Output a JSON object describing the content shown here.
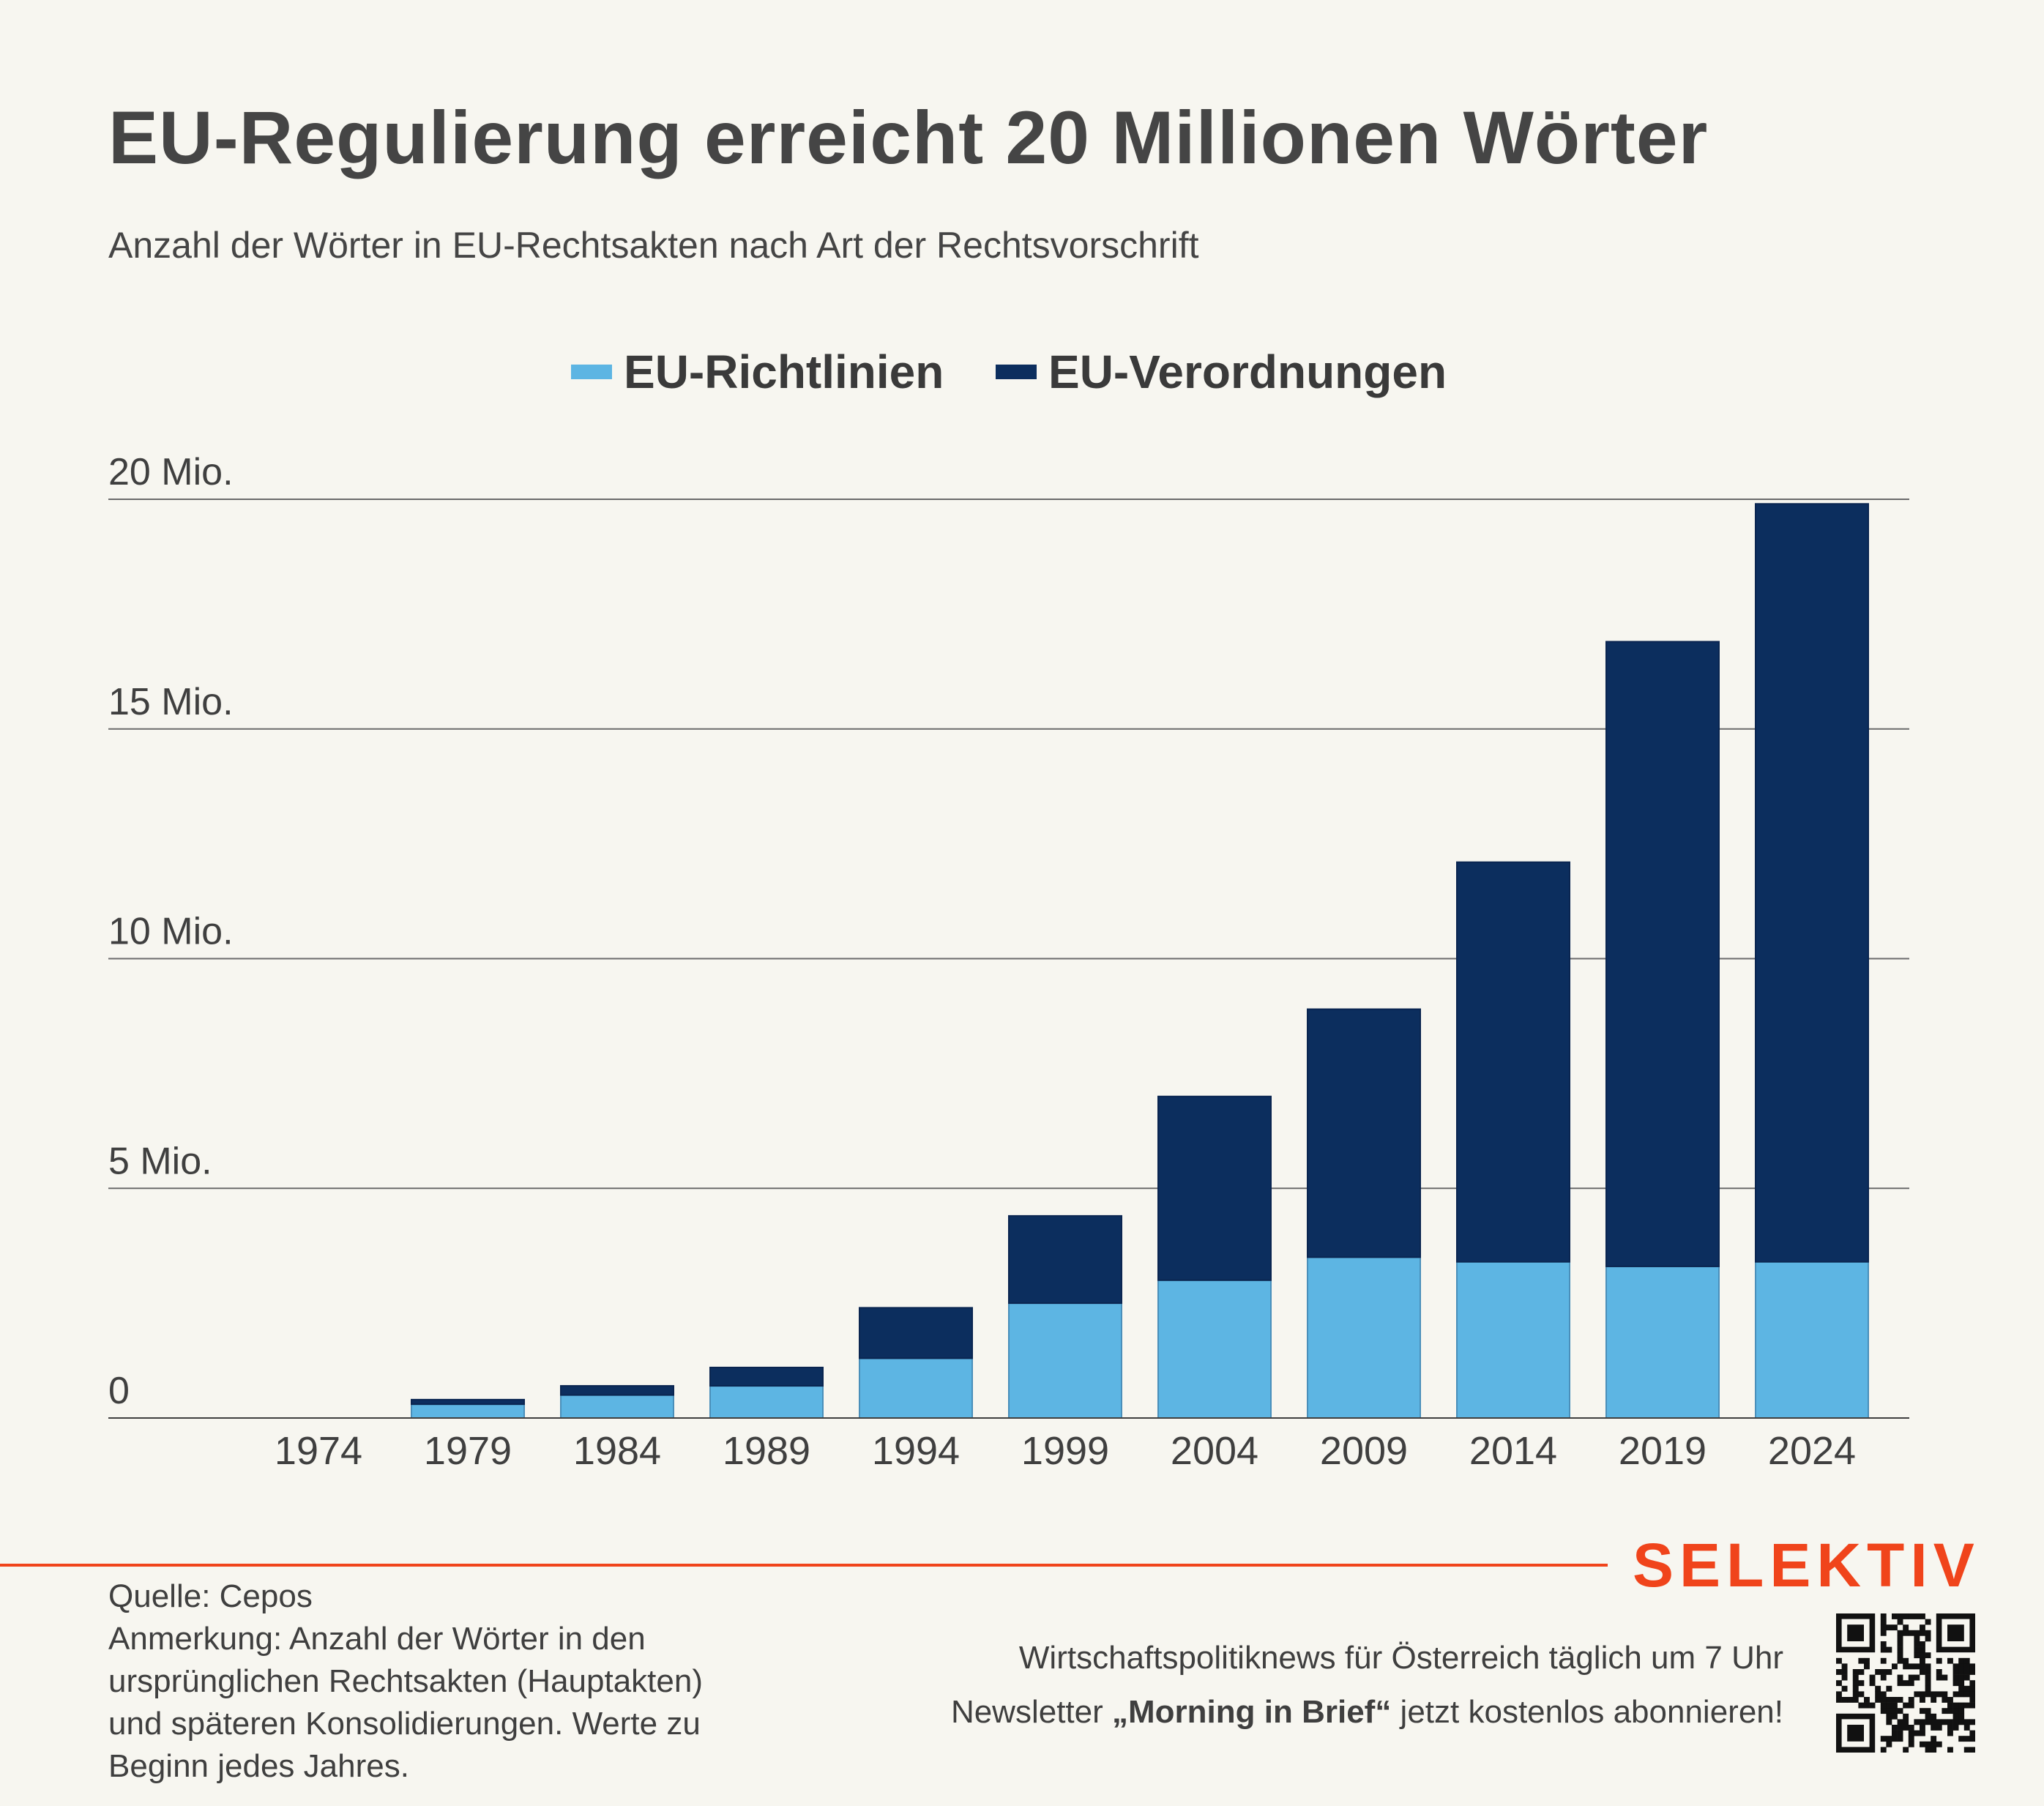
{
  "chart_data": {
    "type": "bar",
    "stacked": true,
    "title": "EU-Regulierung erreicht 20 Millionen Wörter",
    "subtitle": "Anzahl der Wörter in EU-Rechtsakten nach Art der Rechtsvorschrift",
    "categories": [
      "1974",
      "1979",
      "1984",
      "1989",
      "1994",
      "1999",
      "2004",
      "2009",
      "2014",
      "2019",
      "2024"
    ],
    "series": [
      {
        "name": "EU-Richtlinien",
        "color": "#5db5e3",
        "values": [
          0,
          0.3,
          0.5,
          0.7,
          1.3,
          2.5,
          3.0,
          3.5,
          3.4,
          3.3,
          3.4
        ]
      },
      {
        "name": "EU-Verordnungen",
        "color": "#0c2e5e",
        "values": [
          0,
          0.1,
          0.2,
          0.4,
          1.1,
          1.9,
          4.0,
          5.4,
          8.7,
          13.6,
          16.5
        ]
      }
    ],
    "yticks": [
      {
        "value": 0,
        "label": "0"
      },
      {
        "value": 5,
        "label": "5 Mio."
      },
      {
        "value": 10,
        "label": "10 Mio."
      },
      {
        "value": 15,
        "label": "15 Mio."
      },
      {
        "value": 20,
        "label": "20 Mio."
      }
    ],
    "ylim": [
      0,
      20
    ],
    "grid": true,
    "legend_position": "top-center",
    "xlabel": "",
    "ylabel": ""
  },
  "footer": {
    "brand": "SELEKTIV",
    "source": "Quelle: Cepos",
    "note_lines": [
      "Anmerkung: Anzahl der Wörter in den",
      "ursprünglichen Rechtsakten (Hauptakten)",
      "und späteren Konsolidierungen. Werte zu",
      "Beginn jedes Jahres."
    ],
    "promo_line1": "Wirtschaftspolitiknews für Österreich täglich um 7 Uhr",
    "promo_prefix": "Newsletter ",
    "promo_bold": "„Morning in Brief“",
    "promo_suffix": " jetzt kostenlos abonnieren!"
  },
  "colors": {
    "accent": "#f0441b",
    "background": "#f7f6f0",
    "grid": "#6b6b6b"
  },
  "icons": {
    "qr": "qr-code-icon"
  }
}
